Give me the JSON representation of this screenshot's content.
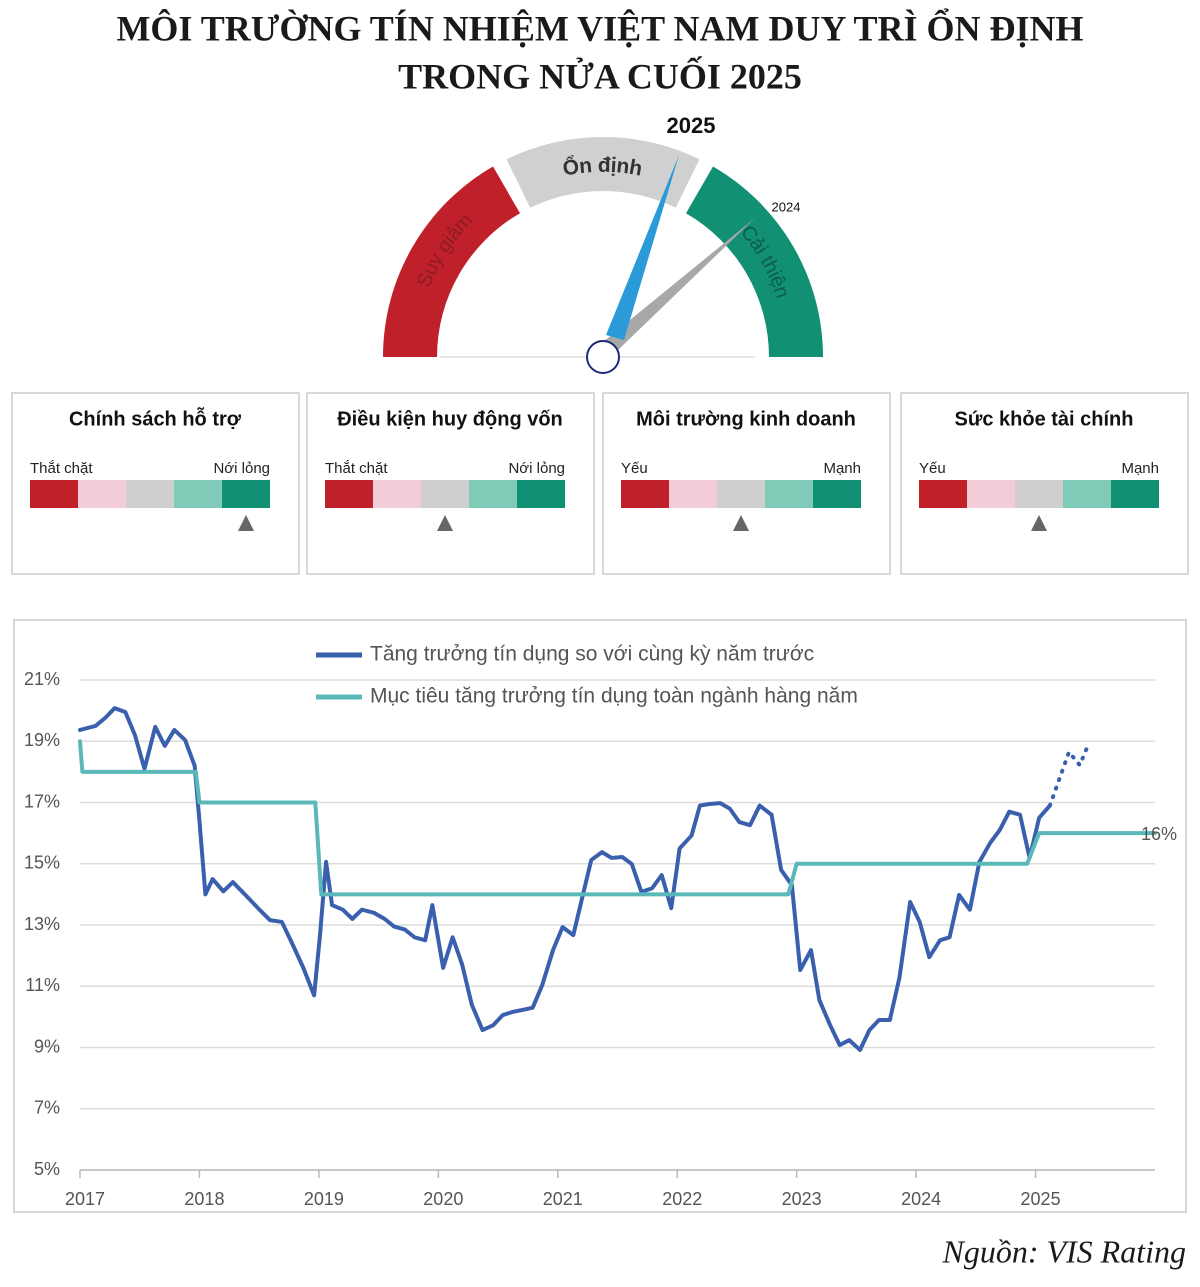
{
  "header": {
    "title_line1": "MÔI TRƯỜNG TÍN NHIỆM VIỆT NAM DUY TRÌ ỔN ĐỊNH",
    "title_line2": "TRONG NỬA CUỐI 2025"
  },
  "gauge": {
    "current_label": "2025",
    "previous_label": "2024",
    "segments": [
      "Suy giảm",
      "Ổn định",
      "Cải thiện"
    ]
  },
  "cards": [
    {
      "title": "Chính sách hỗ trợ",
      "low": "Thắt chặt",
      "high": "Nới lỏng"
    },
    {
      "title": "Điều kiện huy động vốn",
      "low": "Thắt chặt",
      "high": "Nới lỏng"
    },
    {
      "title": "Môi trường kinh doanh",
      "low": "Yếu",
      "high": "Mạnh"
    },
    {
      "title": "Sức khỏe tài chính",
      "low": "Yếu",
      "high": "Mạnh"
    }
  ],
  "chart_data": {
    "type": "line",
    "xlim": [
      2017,
      2026
    ],
    "xticks": [
      2017,
      2018,
      2019,
      2020,
      2021,
      2022,
      2023,
      2024,
      2025
    ],
    "ylim": [
      5,
      21
    ],
    "yticks": [
      {
        "value": 5,
        "label": "5%"
      },
      {
        "value": 7,
        "label": "7%"
      },
      {
        "value": 9,
        "label": "9%"
      },
      {
        "value": 11,
        "label": "11%"
      },
      {
        "value": 13,
        "label": "13%"
      },
      {
        "value": 15,
        "label": "15%"
      },
      {
        "value": 17,
        "label": "17%"
      },
      {
        "value": 19,
        "label": "19%"
      },
      {
        "value": 21,
        "label": "21%"
      }
    ],
    "grid": true,
    "series": [
      {
        "name": "Tăng trưởng tín dụng so với cùng kỳ năm trước",
        "color": "#3a5fad",
        "x": [
          2017.0,
          2017.03,
          2017.13,
          2017.21,
          2017.29,
          2017.38,
          2017.46,
          2017.54,
          2017.63,
          2017.71,
          2017.79,
          2017.88,
          2017.96,
          2018.0,
          2018.05,
          2018.11,
          2018.2,
          2018.28,
          2018.38,
          2018.49,
          2018.59,
          2018.69,
          2018.77,
          2018.87,
          2018.96,
          2019.01,
          2019.06,
          2019.11,
          2019.2,
          2019.28,
          2019.36,
          2019.46,
          2019.55,
          2019.63,
          2019.72,
          2019.8,
          2019.89,
          2019.95,
          2020.04,
          2020.12,
          2020.2,
          2020.28,
          2020.37,
          2020.46,
          2020.54,
          2020.62,
          2020.71,
          2020.79,
          2020.87,
          2020.96,
          2021.04,
          2021.13,
          2021.21,
          2021.28,
          2021.37,
          2021.45,
          2021.54,
          2021.62,
          2021.7,
          2021.79,
          2021.87,
          2021.95,
          2022.02,
          2022.12,
          2022.19,
          2022.27,
          2022.36,
          2022.44,
          2022.52,
          2022.61,
          2022.69,
          2022.79,
          2022.87,
          2022.96,
          2023.03,
          2023.12,
          2023.19,
          2023.28,
          2023.36,
          2023.44,
          2023.53,
          2023.61,
          2023.69,
          2023.78,
          2023.86,
          2023.95,
          2024.03,
          2024.11,
          2024.2,
          2024.28,
          2024.36,
          2024.45,
          2024.53,
          2024.62,
          2024.7,
          2024.78,
          2024.87,
          2024.95,
          2025.03,
          2025.12
        ],
        "values": [
          19.37,
          19.4,
          19.5,
          19.76,
          20.08,
          19.95,
          19.2,
          18.1,
          19.47,
          18.85,
          19.37,
          19.04,
          18.2,
          16.4,
          14.0,
          14.5,
          14.1,
          14.4,
          14.0,
          13.55,
          13.16,
          13.1,
          12.45,
          11.6,
          10.7,
          12.7,
          15.06,
          13.65,
          13.5,
          13.2,
          13.5,
          13.4,
          13.2,
          12.95,
          12.85,
          12.6,
          12.5,
          13.65,
          11.6,
          12.6,
          11.7,
          10.4,
          9.57,
          9.73,
          10.06,
          10.16,
          10.23,
          10.3,
          11.04,
          12.18,
          12.93,
          12.67,
          13.98,
          15.12,
          15.38,
          15.19,
          15.22,
          14.99,
          14.08,
          14.2,
          14.63,
          13.55,
          15.5,
          15.92,
          16.9,
          16.95,
          16.98,
          16.8,
          16.36,
          16.26,
          16.9,
          16.6,
          14.8,
          14.3,
          11.53,
          12.18,
          10.55,
          9.73,
          9.08,
          9.24,
          8.92,
          9.57,
          9.9,
          9.9,
          11.27,
          13.75,
          13.1,
          11.95,
          12.5,
          12.6,
          13.98,
          13.5,
          15.06,
          15.68,
          16.1,
          16.7,
          16.6,
          15.19,
          16.5,
          16.9
        ]
      },
      {
        "color": "#3a5fad",
        "dash": "dotted",
        "x": [
          2025.12,
          2025.28,
          2025.37,
          2025.45
        ],
        "values": [
          16.9,
          18.65,
          18.22,
          18.97
        ]
      },
      {
        "name": "Mục tiêu tăng trưởng tín dụng toàn ngành hàng năm",
        "color": "#5bb8b8",
        "x": [
          2017.0,
          2017.02,
          2017.97,
          2018.0,
          2018.97,
          2019.02,
          2022.93,
          2023.0,
          2024.93,
          2025.03,
          2026.0
        ],
        "values": [
          19,
          18,
          18,
          17,
          17,
          14,
          14,
          15,
          15,
          16,
          16
        ],
        "value_labels": [
          null,
          null,
          null,
          null,
          null,
          null,
          null,
          null,
          null,
          null,
          "16%"
        ]
      }
    ]
  },
  "source": "Nguồn: VIS Rating"
}
